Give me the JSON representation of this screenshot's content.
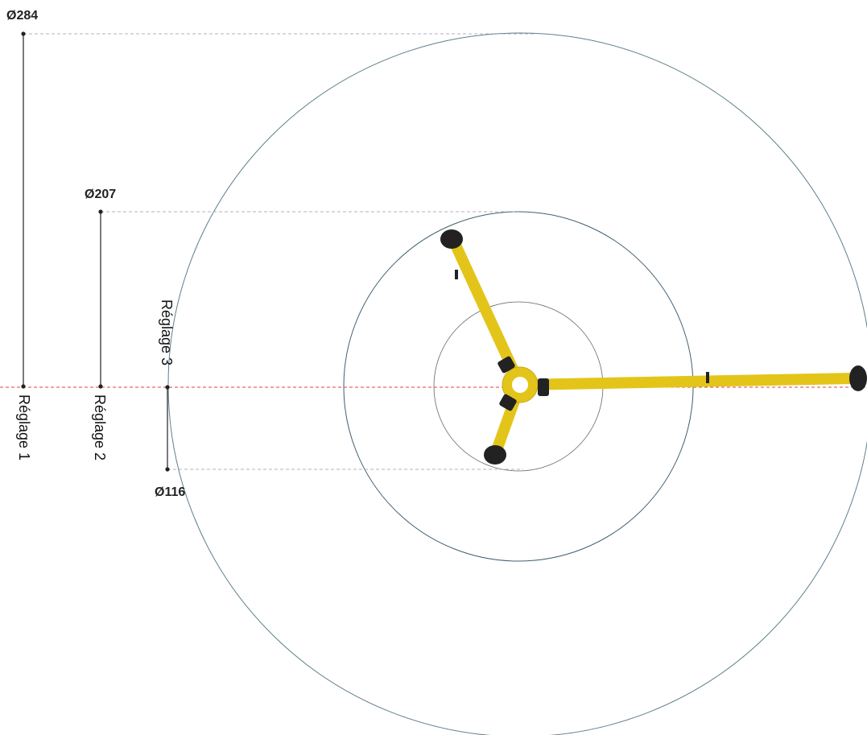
{
  "dimensions": [
    {
      "label": "Ø284",
      "setting": "Réglage 1"
    },
    {
      "label": "Ø207",
      "setting": "Réglage 2"
    },
    {
      "label": "Ø116",
      "setting": "Réglage 3"
    }
  ]
}
